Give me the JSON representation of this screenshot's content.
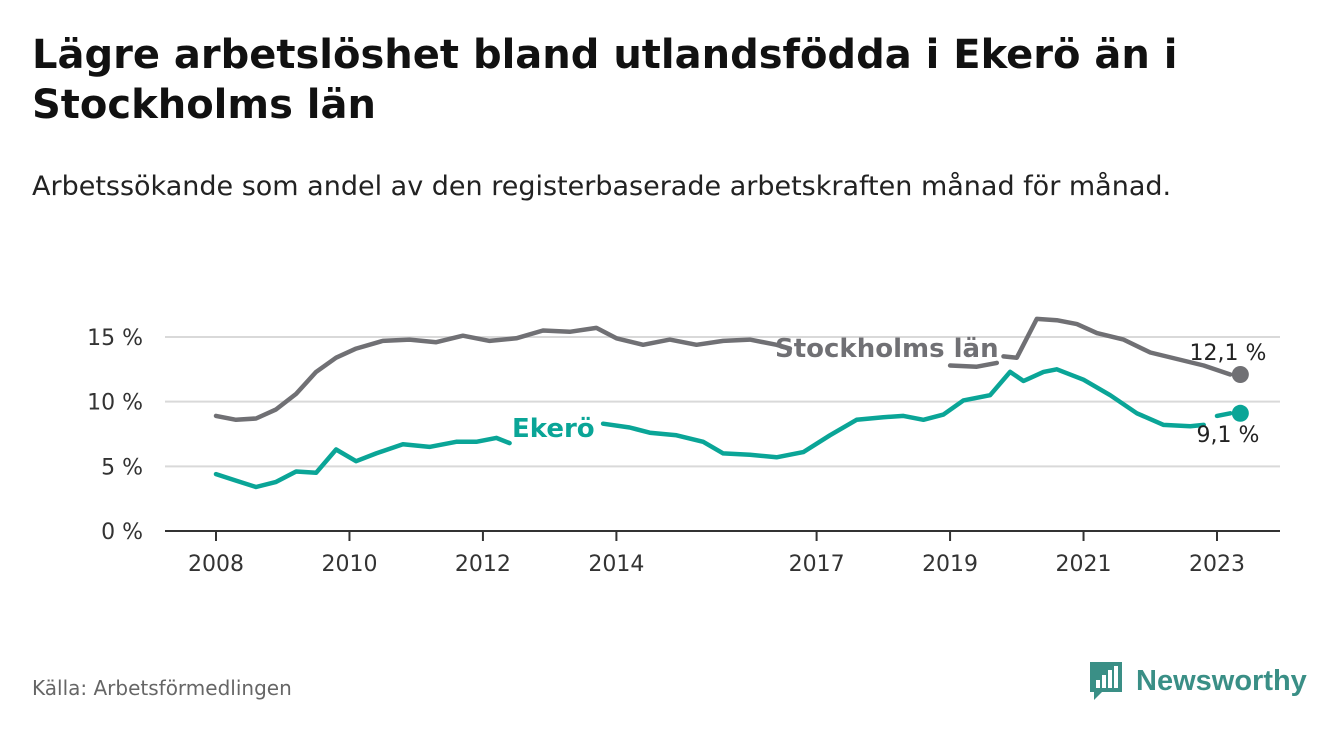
{
  "title": "Lägre arbetslöshet bland utlandsfödda i Ekerö än i Stockholms län",
  "subtitle": "Arbetssökande som andel av den registerbaserade arbetskraften månad för månad.",
  "source": "Källa: Arbetsförmedlingen",
  "brand": "Newsworthy",
  "colors": {
    "stockholm": "#707074",
    "ekero": "#0aa597",
    "axis": "#333333",
    "grid": "#d9d9d9",
    "brand": "#3a8f86"
  },
  "chart_data": {
    "type": "line",
    "title": "Lägre arbetslöshet bland utlandsfödda i Ekerö än i Stockholms län",
    "xlabel": "",
    "ylabel": "",
    "xlim": [
      2007.0,
      2024.0
    ],
    "ylim": [
      0,
      15
    ],
    "y_ticks": [
      0,
      5,
      10,
      15
    ],
    "y_tick_labels": [
      "0 %",
      "5 %",
      "10 %",
      "15 %"
    ],
    "x_ticks": [
      2008,
      2010,
      2012,
      2014,
      2017,
      2019,
      2021,
      2023
    ],
    "x_tick_labels": [
      "2008",
      "2010",
      "2012",
      "2014",
      "2017",
      "2019",
      "2021",
      "2023"
    ],
    "grid": true,
    "series": [
      {
        "name": "Stockholms län",
        "last_value_label": "12,1 %",
        "x": [
          2008.0,
          2008.3,
          2008.6,
          2008.9,
          2009.2,
          2009.5,
          2009.8,
          2010.1,
          2010.5,
          2010.9,
          2011.3,
          2011.7,
          2012.1,
          2012.5,
          2012.9,
          2013.3,
          2013.7,
          2014.0,
          2014.4,
          2014.8,
          2015.2,
          2015.6,
          2016.0,
          2016.4,
          2016.6,
          null,
          2019.0,
          2019.4,
          2019.7,
          null,
          2019.8,
          2020.0,
          2020.3,
          2020.6,
          2020.9,
          2021.2,
          2021.6,
          2022.0,
          2022.4,
          2022.8,
          2023.2
        ],
        "values": [
          8.9,
          8.6,
          8.7,
          9.4,
          10.6,
          12.3,
          13.4,
          14.1,
          14.7,
          14.8,
          14.6,
          15.1,
          14.7,
          14.9,
          15.5,
          15.4,
          15.7,
          14.9,
          14.4,
          14.8,
          14.4,
          14.7,
          14.8,
          14.4,
          14.1,
          null,
          12.8,
          12.7,
          13.0,
          null,
          13.5,
          13.4,
          16.4,
          16.3,
          16.0,
          15.3,
          14.8,
          13.8,
          13.3,
          12.8,
          12.1
        ]
      },
      {
        "name": "Ekerö",
        "last_value_label": "9,1 %",
        "x": [
          2008.0,
          2008.3,
          2008.6,
          2008.9,
          2009.2,
          2009.5,
          2009.8,
          2010.1,
          2010.4,
          2010.8,
          2011.2,
          2011.6,
          2011.9,
          2012.2,
          2012.4,
          null,
          2013.8,
          2014.2,
          2014.5,
          2014.9,
          2015.3,
          2015.6,
          2016.0,
          2016.4,
          2016.8,
          2017.2,
          2017.6,
          2018.0,
          2018.3,
          2018.6,
          2018.9,
          2019.2,
          2019.6,
          2019.9,
          2020.1,
          2020.4,
          2020.6,
          2021.0,
          2021.4,
          2021.8,
          2022.2,
          2022.6,
          2022.8,
          null,
          2023.0,
          2023.2
        ],
        "values": [
          4.4,
          3.9,
          3.4,
          3.8,
          4.6,
          4.5,
          6.3,
          5.4,
          6.0,
          6.7,
          6.5,
          6.9,
          6.9,
          7.2,
          6.8,
          null,
          8.3,
          8.0,
          7.6,
          7.4,
          6.9,
          6.0,
          5.9,
          5.7,
          6.1,
          7.4,
          8.6,
          8.8,
          8.9,
          8.6,
          9.0,
          10.1,
          10.5,
          12.3,
          11.6,
          12.3,
          12.5,
          11.7,
          10.5,
          9.1,
          8.2,
          8.1,
          8.2,
          null,
          8.9,
          9.1
        ]
      }
    ],
    "annotations": [
      {
        "text": "Stockholms län",
        "series": "Stockholms län"
      },
      {
        "text": "Ekerö",
        "series": "Ekerö"
      }
    ]
  }
}
